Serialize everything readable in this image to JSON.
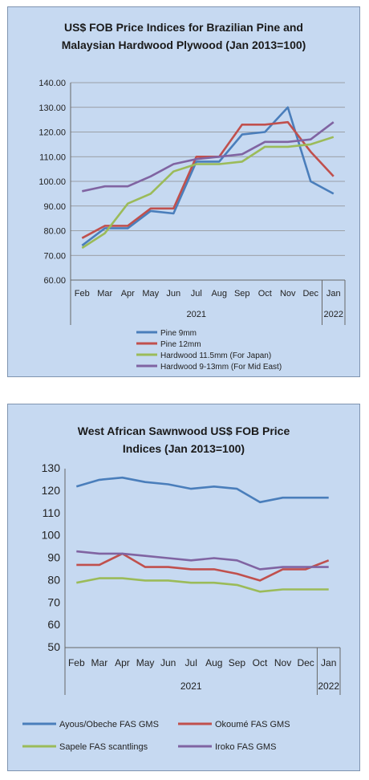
{
  "chart_data": [
    {
      "type": "line",
      "title": "US$ FOB Price Indices for Brazilian Pine and Malaysian Hardwood Plywood (Jan 2013=100)",
      "title_lines": [
        "US$ FOB Price Indices for Brazilian Pine and",
        "Malaysian Hardwood Plywood (Jan 2013=100)"
      ],
      "categories": [
        "Feb",
        "Mar",
        "Apr",
        "May",
        "Jun",
        "Jul",
        "Aug",
        "Sep",
        "Oct",
        "Nov",
        "Dec",
        "Jan"
      ],
      "year_labels": [
        "2021",
        "2022"
      ],
      "ylim": [
        60,
        140
      ],
      "yticks": [
        "60.00",
        "70.00",
        "80.00",
        "90.00",
        "100.00",
        "110.00",
        "120.00",
        "130.00",
        "140.00"
      ],
      "grid": true,
      "legend_position": "bottom",
      "series": [
        {
          "name": "Pine 9mm",
          "color": "#4a7ebb",
          "values": [
            74,
            81,
            81,
            88,
            87,
            108,
            108,
            119,
            120,
            130,
            100,
            95
          ]
        },
        {
          "name": "Pine 12mm",
          "color": "#c0504d",
          "values": [
            77,
            82,
            82,
            89,
            89,
            110,
            110,
            123,
            123,
            124,
            112,
            102
          ]
        },
        {
          "name": "Hardwood 11.5mm (For Japan)",
          "color": "#9bbb59",
          "values": [
            73,
            79,
            91,
            95,
            104,
            107,
            107,
            108,
            114,
            114,
            115,
            118
          ]
        },
        {
          "name": "Hardwood 9-13mm (For Mid East)",
          "color": "#8064a2",
          "values": [
            96,
            98,
            98,
            102,
            107,
            109,
            110,
            111,
            116,
            116,
            117,
            124
          ]
        }
      ]
    },
    {
      "type": "line",
      "title": "West African Sawnwood US$ FOB Price Indices (Jan 2013=100)",
      "title_lines": [
        "West African Sawnwood US$ FOB Price",
        "Indices (Jan 2013=100)"
      ],
      "categories": [
        "Feb",
        "Mar",
        "Apr",
        "May",
        "Jun",
        "Jul",
        "Aug",
        "Sep",
        "Oct",
        "Nov",
        "Dec",
        "Jan"
      ],
      "year_labels": [
        "2021",
        "2022"
      ],
      "ylim": [
        50,
        130
      ],
      "yticks": [
        "50",
        "60",
        "70",
        "80",
        "90",
        "100",
        "110",
        "120",
        "130"
      ],
      "grid": false,
      "legend_position": "bottom",
      "series": [
        {
          "name": "Ayous/Obeche  FAS GMS",
          "color": "#4a7ebb",
          "values": [
            122,
            125,
            126,
            124,
            123,
            121,
            122,
            121,
            115,
            117,
            117,
            117
          ]
        },
        {
          "name": "Okoumé  FAS GMS",
          "color": "#c0504d",
          "values": [
            87,
            87,
            92,
            86,
            86,
            85,
            85,
            83,
            80,
            85,
            85,
            89
          ]
        },
        {
          "name": "Sapele FAS scantlings",
          "color": "#9bbb59",
          "values": [
            79,
            81,
            81,
            80,
            80,
            79,
            79,
            78,
            75,
            76,
            76,
            76
          ]
        },
        {
          "name": "Iroko FAS GMS",
          "color": "#8064a2",
          "values": [
            93,
            92,
            92,
            91,
            90,
            89,
            90,
            89,
            85,
            86,
            86,
            86
          ]
        }
      ]
    }
  ]
}
